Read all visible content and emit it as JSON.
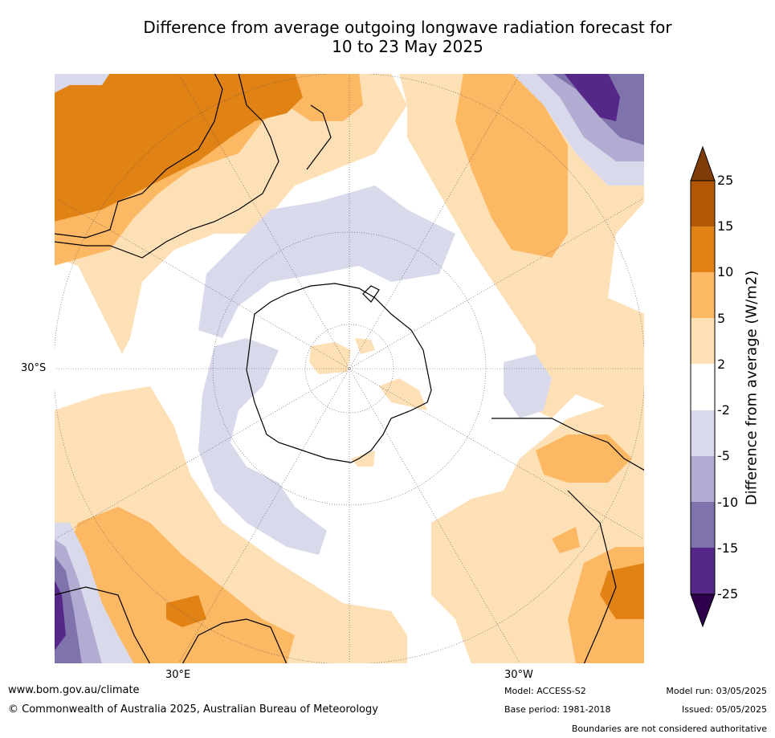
{
  "title_line1": "Difference from average outgoing longwave radiation forecast for",
  "title_line2": "10 to 23 May 2025",
  "lat_label": "30°S",
  "lon_label_left": "30°E",
  "lon_label_right": "30°W",
  "colorbar": {
    "label": "Difference from average (W/m2)",
    "ticks": [
      "25",
      "15",
      "10",
      "5",
      "2",
      "-2",
      "-5",
      "-10",
      "-15",
      "-25"
    ],
    "colors": {
      "over": "#7f3b08",
      "b15_25": "#b35806",
      "b10_15": "#e08214",
      "b5_10": "#fdb863",
      "b2_5": "#fee0b6",
      "neutral": "#ffffff",
      "bm5_m2": "#d8daeb",
      "bm10_m5": "#b2abd2",
      "bm15_m10": "#8073ac",
      "bm25_m15": "#542788",
      "under": "#2d004b"
    }
  },
  "footer": {
    "website": "www.bom.gov.au/climate",
    "copyright": "© Commonwealth of Australia 2025, Australian Bureau of Meteorology",
    "model": "Model: ACCESS-S2",
    "base_period": "Base period: 1981-2018",
    "model_run": "Model run: 03/05/2025",
    "issued": "Issued: 05/05/2025",
    "disclaimer": "Boundaries are not considered authoritative"
  }
}
